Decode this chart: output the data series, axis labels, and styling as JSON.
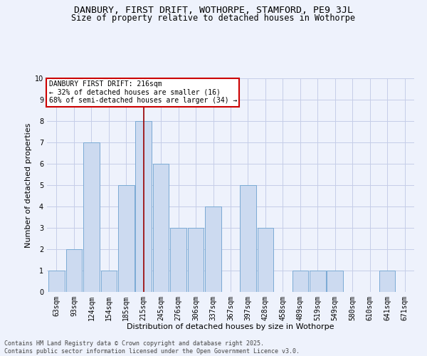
{
  "title_line1": "DANBURY, FIRST DRIFT, WOTHORPE, STAMFORD, PE9 3JL",
  "title_line2": "Size of property relative to detached houses in Wothorpe",
  "xlabel": "Distribution of detached houses by size in Wothorpe",
  "ylabel": "Number of detached properties",
  "categories": [
    "63sqm",
    "93sqm",
    "124sqm",
    "154sqm",
    "185sqm",
    "215sqm",
    "245sqm",
    "276sqm",
    "306sqm",
    "337sqm",
    "367sqm",
    "397sqm",
    "428sqm",
    "458sqm",
    "489sqm",
    "519sqm",
    "549sqm",
    "580sqm",
    "610sqm",
    "641sqm",
    "671sqm"
  ],
  "values": [
    1,
    2,
    7,
    1,
    5,
    8,
    6,
    3,
    3,
    4,
    0,
    5,
    3,
    0,
    1,
    1,
    1,
    0,
    0,
    1,
    0
  ],
  "bar_color": "#ccdaf0",
  "bar_edge_color": "#7aaad4",
  "reference_line_color": "#990000",
  "annotation_text": "DANBURY FIRST DRIFT: 216sqm\n← 32% of detached houses are smaller (16)\n68% of semi-detached houses are larger (34) →",
  "annotation_box_color": "#ffffff",
  "annotation_box_edge_color": "#cc0000",
  "ylim": [
    0,
    10
  ],
  "yticks": [
    0,
    1,
    2,
    3,
    4,
    5,
    6,
    7,
    8,
    9,
    10
  ],
  "footnote": "Contains HM Land Registry data © Crown copyright and database right 2025.\nContains public sector information licensed under the Open Government Licence v3.0.",
  "background_color": "#eef2fc",
  "grid_color": "#c5cde8",
  "title_fontsize": 9.5,
  "subtitle_fontsize": 8.5,
  "axis_label_fontsize": 8,
  "tick_fontsize": 7,
  "footnote_fontsize": 6,
  "annotation_fontsize": 7
}
